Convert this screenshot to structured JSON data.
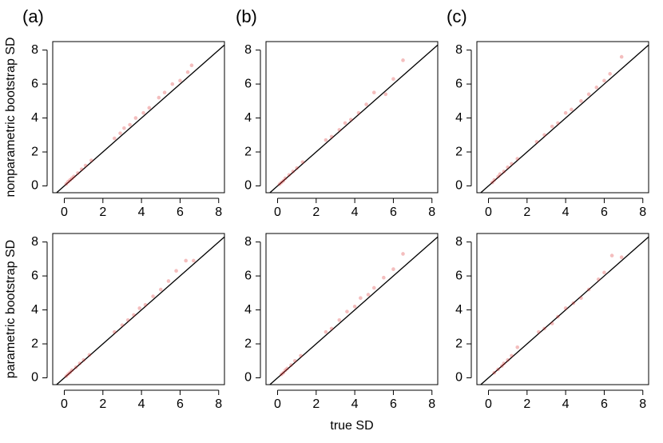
{
  "chart_data": [
    {
      "type": "scatter",
      "title": "(a)",
      "ylabel": "nonparametric bootstrap SD",
      "color": "rgba(220,40,40,0.3)",
      "diagonal": true,
      "xlim": [
        -0.6,
        8.3
      ],
      "ylim": [
        -0.4,
        8.5
      ],
      "xticks": [
        0,
        2,
        4,
        6,
        8
      ],
      "yticks": [
        0,
        2,
        4,
        6,
        8
      ],
      "x": [
        0.1,
        0.2,
        0.3,
        0.4,
        0.5,
        0.7,
        0.9,
        1.1,
        1.4,
        2.6,
        2.9,
        3.1,
        3.4,
        3.7,
        4.1,
        4.4,
        4.9,
        5.2,
        5.6,
        6.0,
        6.4,
        6.6
      ],
      "y": [
        0.12,
        0.25,
        0.35,
        0.45,
        0.56,
        0.76,
        0.98,
        1.2,
        1.5,
        2.8,
        3.1,
        3.4,
        3.6,
        4.0,
        4.3,
        4.6,
        5.2,
        5.5,
        6.0,
        6.2,
        6.7,
        7.1
      ]
    },
    {
      "type": "scatter",
      "title": "(b)",
      "color": "rgba(220,40,40,0.3)",
      "diagonal": true,
      "xlim": [
        -0.6,
        8.3
      ],
      "ylim": [
        -0.4,
        8.5
      ],
      "xticks": [
        0,
        2,
        4,
        6,
        8
      ],
      "yticks": [
        0,
        2,
        4,
        6,
        8
      ],
      "x": [
        0.1,
        0.2,
        0.3,
        0.4,
        0.6,
        0.8,
        1.0,
        1.3,
        2.5,
        2.8,
        3.2,
        3.5,
        3.8,
        4.2,
        4.6,
        5.0,
        5.6,
        6.0,
        6.5
      ],
      "y": [
        0.1,
        0.2,
        0.3,
        0.45,
        0.65,
        0.85,
        1.05,
        1.4,
        2.7,
        2.9,
        3.3,
        3.7,
        3.9,
        4.3,
        4.8,
        5.5,
        5.4,
        6.3,
        7.4
      ]
    },
    {
      "type": "scatter",
      "title": "(c)",
      "color": "rgba(220,40,40,0.3)",
      "diagonal": true,
      "xlim": [
        -0.6,
        8.3
      ],
      "ylim": [
        -0.4,
        8.5
      ],
      "xticks": [
        0,
        2,
        4,
        6,
        8
      ],
      "yticks": [
        0,
        2,
        4,
        6,
        8
      ],
      "x": [
        0.2,
        0.3,
        0.5,
        0.6,
        0.8,
        1.0,
        1.2,
        1.5,
        2.5,
        2.9,
        3.3,
        3.6,
        4.0,
        4.3,
        4.8,
        5.2,
        5.6,
        6.0,
        6.3,
        6.9
      ],
      "y": [
        0.2,
        0.35,
        0.55,
        0.7,
        0.85,
        1.1,
        1.3,
        1.6,
        2.6,
        3.0,
        3.5,
        3.7,
        4.3,
        4.5,
        5.0,
        5.4,
        5.8,
        6.2,
        6.6,
        7.6
      ]
    },
    {
      "type": "scatter",
      "ylabel": "parametric bootstrap SD",
      "color": "rgba(220,40,40,0.3)",
      "diagonal": true,
      "xlim": [
        -0.6,
        8.3
      ],
      "ylim": [
        -0.4,
        8.5
      ],
      "xticks": [
        0,
        2,
        4,
        6,
        8
      ],
      "yticks": [
        0,
        2,
        4,
        6,
        8
      ],
      "x": [
        0.1,
        0.2,
        0.3,
        0.4,
        0.6,
        0.8,
        1.0,
        1.3,
        2.6,
        3.0,
        3.3,
        3.6,
        3.9,
        4.2,
        4.6,
        5.0,
        5.4,
        5.8,
        6.3,
        6.7
      ],
      "y": [
        0.1,
        0.22,
        0.32,
        0.45,
        0.62,
        0.85,
        1.05,
        1.35,
        2.7,
        3.1,
        3.4,
        3.7,
        4.1,
        4.3,
        4.8,
        5.2,
        5.7,
        6.3,
        6.9,
        6.9
      ]
    },
    {
      "type": "scatter",
      "xlabel": "true SD",
      "color": "rgba(220,40,40,0.3)",
      "diagonal": true,
      "xlim": [
        -0.6,
        8.3
      ],
      "ylim": [
        -0.4,
        8.5
      ],
      "xticks": [
        0,
        2,
        4,
        6,
        8
      ],
      "yticks": [
        0,
        2,
        4,
        6,
        8
      ],
      "x": [
        0.2,
        0.3,
        0.4,
        0.5,
        0.7,
        0.9,
        1.2,
        2.5,
        2.8,
        3.2,
        3.6,
        4.0,
        4.3,
        4.7,
        5.0,
        5.5,
        6.0,
        6.5
      ],
      "y": [
        0.2,
        0.3,
        0.45,
        0.55,
        0.75,
        1.0,
        1.3,
        2.7,
        2.9,
        3.4,
        3.9,
        4.2,
        4.7,
        4.9,
        5.3,
        5.9,
        6.4,
        7.3
      ]
    },
    {
      "type": "scatter",
      "color": "rgba(220,40,40,0.3)",
      "diagonal": true,
      "xlim": [
        -0.6,
        8.3
      ],
      "ylim": [
        -0.4,
        8.5
      ],
      "xticks": [
        0,
        2,
        4,
        6,
        8
      ],
      "yticks": [
        0,
        2,
        4,
        6,
        8
      ],
      "x": [
        0.3,
        0.5,
        0.7,
        0.8,
        1.0,
        1.2,
        1.5,
        2.6,
        2.9,
        3.3,
        3.6,
        4.0,
        4.4,
        4.8,
        5.2,
        5.7,
        6.0,
        6.4,
        6.9
      ],
      "y": [
        0.3,
        0.5,
        0.7,
        0.85,
        1.05,
        1.3,
        1.8,
        2.7,
        2.9,
        3.2,
        3.6,
        4.1,
        4.4,
        4.7,
        5.2,
        5.8,
        6.2,
        7.2,
        7.1
      ]
    }
  ]
}
